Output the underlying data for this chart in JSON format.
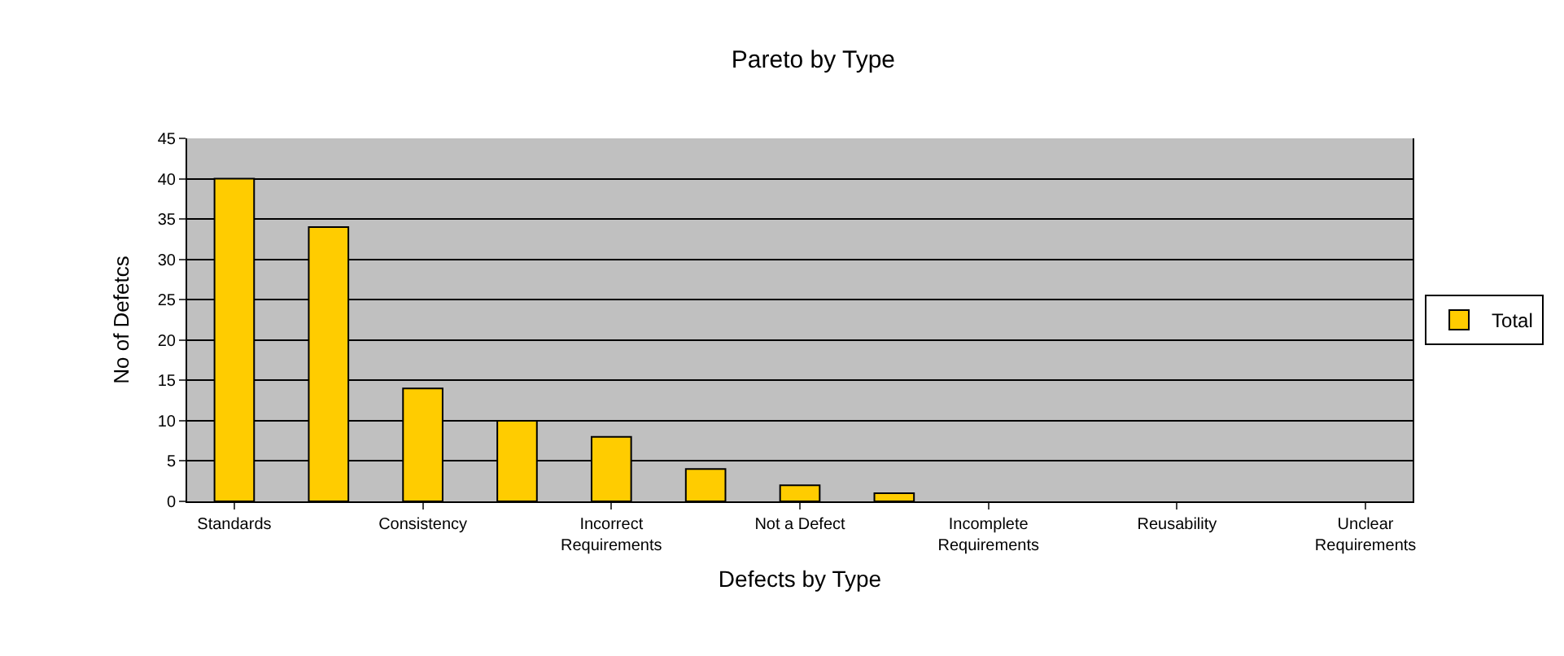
{
  "chart_data": {
    "type": "bar",
    "title": "Pareto by Type",
    "xlabel": "Defects by Type",
    "ylabel": "No of Defetcs",
    "categories": [
      "Standards",
      null,
      "Consistency",
      null,
      "Incorrect Requirements",
      null,
      "Not a Defect",
      null,
      "Incomplete Requirements",
      null,
      "Reusability",
      null,
      "Unclear Requirements"
    ],
    "series": [
      {
        "name": "Total",
        "color": "#ffcc00",
        "values": [
          40,
          34,
          14,
          10,
          8,
          4,
          2,
          1,
          0,
          0,
          0,
          0,
          0
        ]
      }
    ],
    "ylim": [
      0,
      45
    ],
    "yticks": [
      0,
      5,
      10,
      15,
      20,
      25,
      30,
      35,
      40,
      45
    ],
    "grid": "y",
    "legend": "right"
  }
}
